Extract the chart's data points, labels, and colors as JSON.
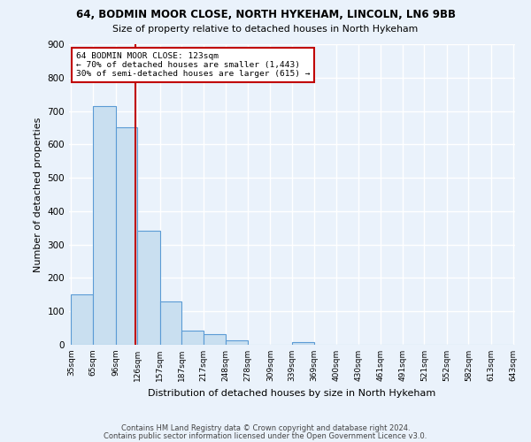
{
  "title1": "64, BODMIN MOOR CLOSE, NORTH HYKEHAM, LINCOLN, LN6 9BB",
  "title2": "Size of property relative to detached houses in North Hykeham",
  "xlabel": "Distribution of detached houses by size in North Hykeham",
  "ylabel": "Number of detached properties",
  "footer1": "Contains HM Land Registry data © Crown copyright and database right 2024.",
  "footer2": "Contains public sector information licensed under the Open Government Licence v3.0.",
  "bin_labels": [
    "35sqm",
    "65sqm",
    "96sqm",
    "126sqm",
    "157sqm",
    "187sqm",
    "217sqm",
    "248sqm",
    "278sqm",
    "309sqm",
    "339sqm",
    "369sqm",
    "400sqm",
    "430sqm",
    "461sqm",
    "491sqm",
    "521sqm",
    "552sqm",
    "582sqm",
    "613sqm",
    "643sqm"
  ],
  "bar_values": [
    152,
    716,
    651,
    341,
    131,
    42,
    32,
    12,
    0,
    0,
    9,
    0,
    0,
    0,
    0,
    0,
    0,
    0,
    0,
    0
  ],
  "bar_color": "#c9dff0",
  "bar_edge_color": "#5b9bd5",
  "bg_color": "#eaf2fb",
  "grid_color": "#ffffff",
  "vline_x": 123,
  "vline_color": "#c00000",
  "annotation_line1": "64 BODMIN MOOR CLOSE: 123sqm",
  "annotation_line2": "← 70% of detached houses are smaller (1,443)",
  "annotation_line3": "30% of semi-detached houses are larger (615) →",
  "annotation_box_color": "#ffffff",
  "annotation_border_color": "#c00000",
  "ylim": [
    0,
    900
  ],
  "bin_edges": [
    35,
    65,
    96,
    126,
    157,
    187,
    217,
    248,
    278,
    309,
    339,
    369,
    400,
    430,
    461,
    491,
    521,
    552,
    582,
    613,
    643
  ]
}
